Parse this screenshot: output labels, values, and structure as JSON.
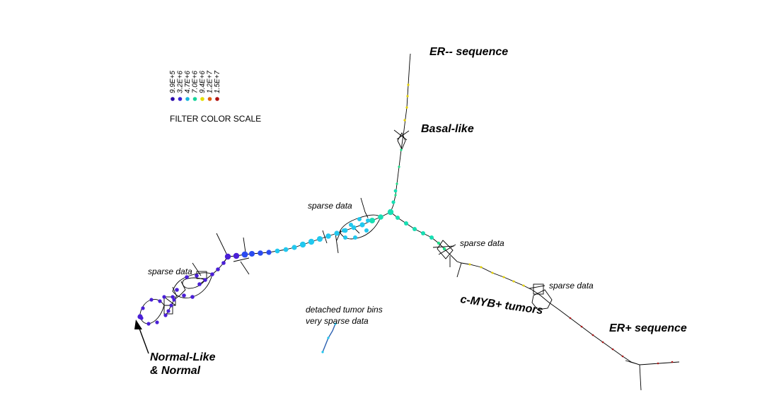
{
  "labels": {
    "er_minus": "ER-- sequence",
    "basal": "Basal-like",
    "sparse_center": "sparse data",
    "sparse_right": "sparse data",
    "sparse_left": "sparse data",
    "sparse_er_plus": "sparse data",
    "cmyb": "c-MYB+ tumors",
    "er_plus": "ER+ sequence",
    "detached_line1": "detached tumor bins",
    "detached_line2": "very sparse data",
    "normal_line1": "Normal-Like",
    "normal_line2": "& Normal"
  },
  "filter_scale": {
    "title": "FILTER COLOR SCALE",
    "entries": [
      {
        "value": "9.9E+5",
        "color": "#2a0aa8"
      },
      {
        "value": "3.2E+6",
        "color": "#3a22d6"
      },
      {
        "value": "4.7E+6",
        "color": "#19b7dc"
      },
      {
        "value": "7.0E+6",
        "color": "#16d49a"
      },
      {
        "value": "9.4E+6",
        "color": "#e4e000"
      },
      {
        "value": "1.2E+7",
        "color": "#e06010"
      },
      {
        "value": "1.5E+7",
        "color": "#b01010"
      }
    ]
  },
  "colors": {
    "line": "#000000",
    "violet": "#4a1fd6",
    "blue": "#2b4bf0",
    "cyan": "#22c8ef",
    "teal": "#17dfb3",
    "green": "#1ee089",
    "yellow": "#e6d200",
    "red": "#b01818"
  }
}
